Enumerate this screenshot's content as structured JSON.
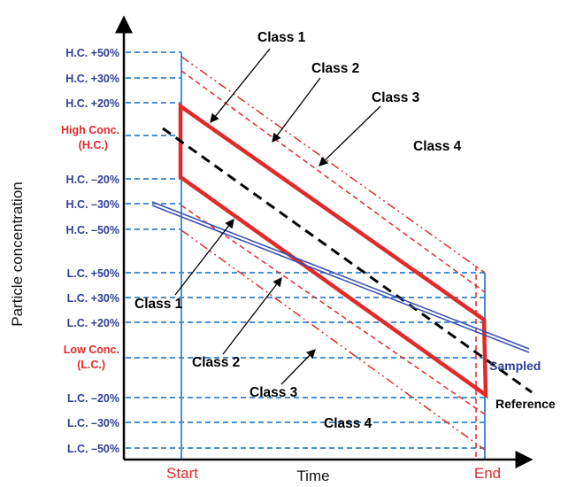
{
  "levels": {
    "hc_p50": "H.C. +50%",
    "hc_p30": "H.C. +30%",
    "hc_p20": "H.C. +20%",
    "hc_title": "High Conc.",
    "hc_abbr": "(H.C.)",
    "hc_m20": "H.C. –20%",
    "hc_m30": "H.C. –30%",
    "hc_m50": "H.C. –50%",
    "lc_p50": "L.C. +50%",
    "lc_p30": "L.C. +30%",
    "lc_p20": "L.C. +20%",
    "lc_title": "Low Conc.",
    "lc_abbr": "(L.C.)",
    "lc_m20": "L.C. –20%",
    "lc_m30": "L.C. –30%",
    "lc_m50": "L.C. –50%"
  },
  "axes": {
    "y_label": "Particle concentration",
    "x_label": "Time",
    "start": "Start",
    "end": "End"
  },
  "classes": {
    "upper_1": "Class 1",
    "upper_2": "Class 2",
    "upper_3": "Class 3",
    "upper_4": "Class 4",
    "lower_1": "Class 1",
    "lower_2": "Class 2",
    "lower_3": "Class 3",
    "lower_4": "Class 4"
  },
  "lines": {
    "sampled": "Sampled",
    "reference": "Reference"
  },
  "colors": {
    "level_blue": "#2e3d98",
    "level_red": "#e02a2a",
    "guide_blue": "#4a90d0",
    "band_red": "#e02a2a",
    "sampled_line": "#3b4fb0",
    "reference_line": "#000000"
  }
}
